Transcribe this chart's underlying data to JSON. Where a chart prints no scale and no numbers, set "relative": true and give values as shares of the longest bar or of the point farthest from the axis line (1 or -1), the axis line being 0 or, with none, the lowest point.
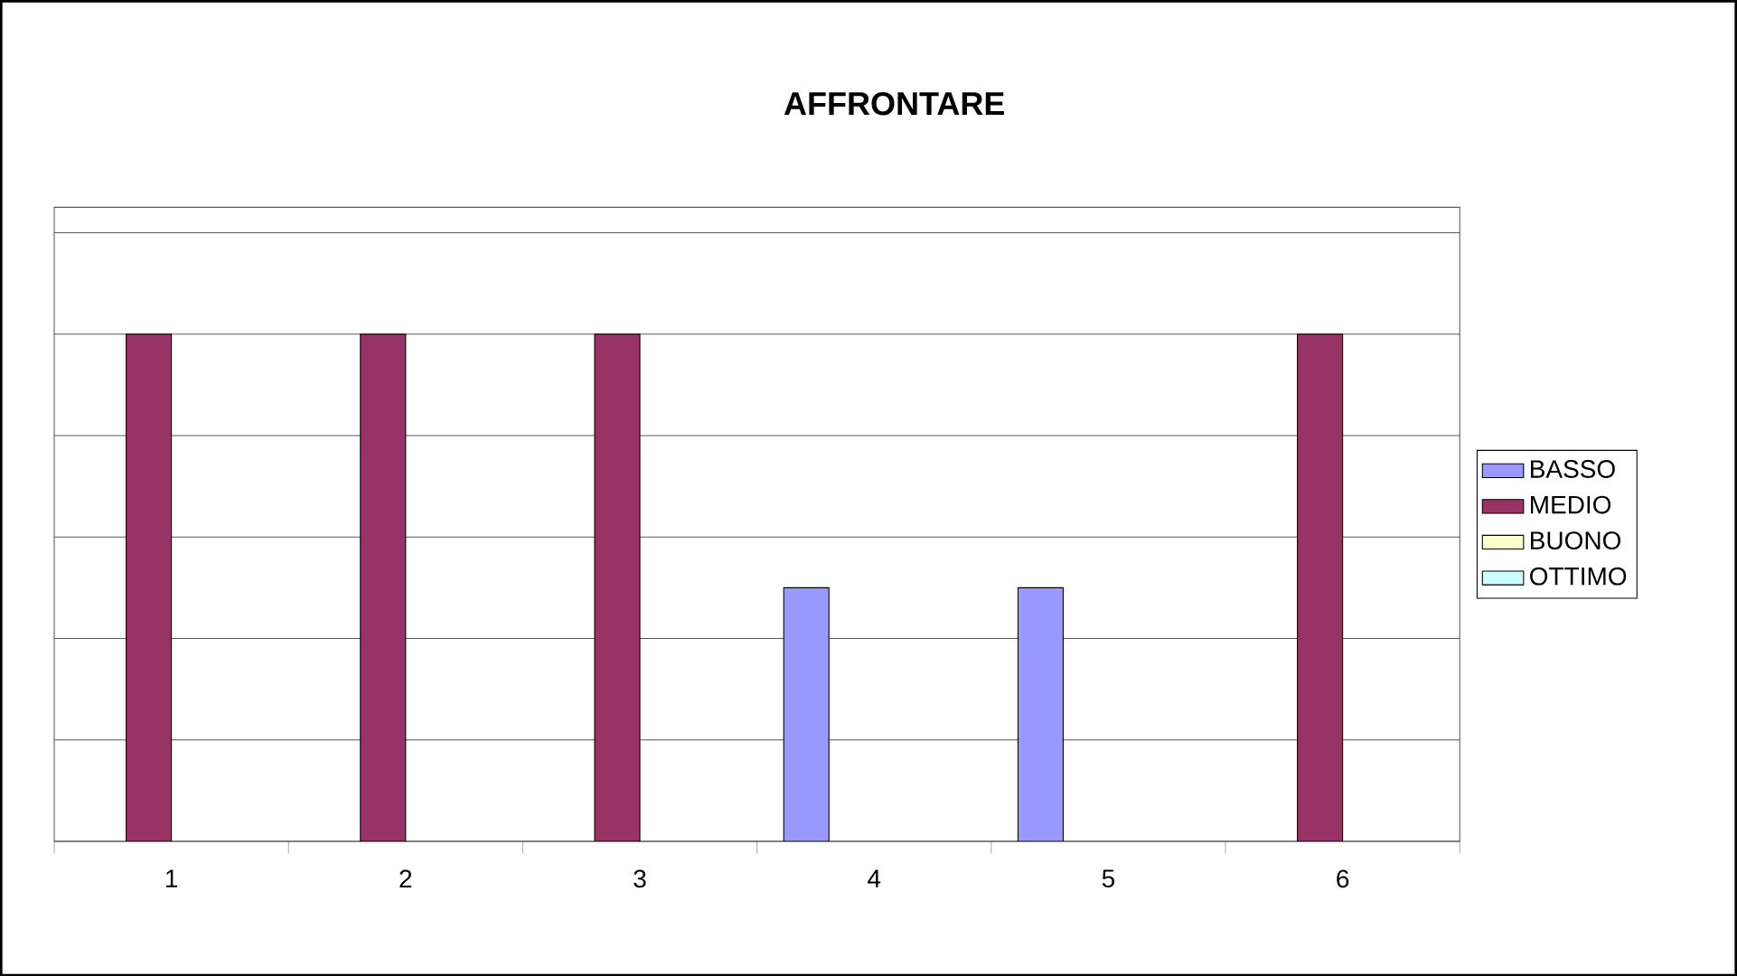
{
  "chart_data": {
    "type": "bar",
    "title": "AFFRONTARE",
    "categories": [
      "1",
      "2",
      "3",
      "4",
      "5",
      "6"
    ],
    "series": [
      {
        "name": "BASSO",
        "color": "#9999ff",
        "values": [
          null,
          null,
          null,
          0.5,
          0.5,
          null
        ]
      },
      {
        "name": "MEDIO",
        "color": "#993366",
        "values": [
          1,
          1,
          1,
          null,
          null,
          1
        ]
      },
      {
        "name": "BUONO",
        "color": "#ffffcc",
        "values": [
          null,
          null,
          null,
          null,
          null,
          null
        ]
      },
      {
        "name": "OTTIMO",
        "color": "#ccffff",
        "values": [
          null,
          null,
          null,
          null,
          null,
          null
        ]
      }
    ],
    "relative": true,
    "grid": "y",
    "legend": "right"
  }
}
